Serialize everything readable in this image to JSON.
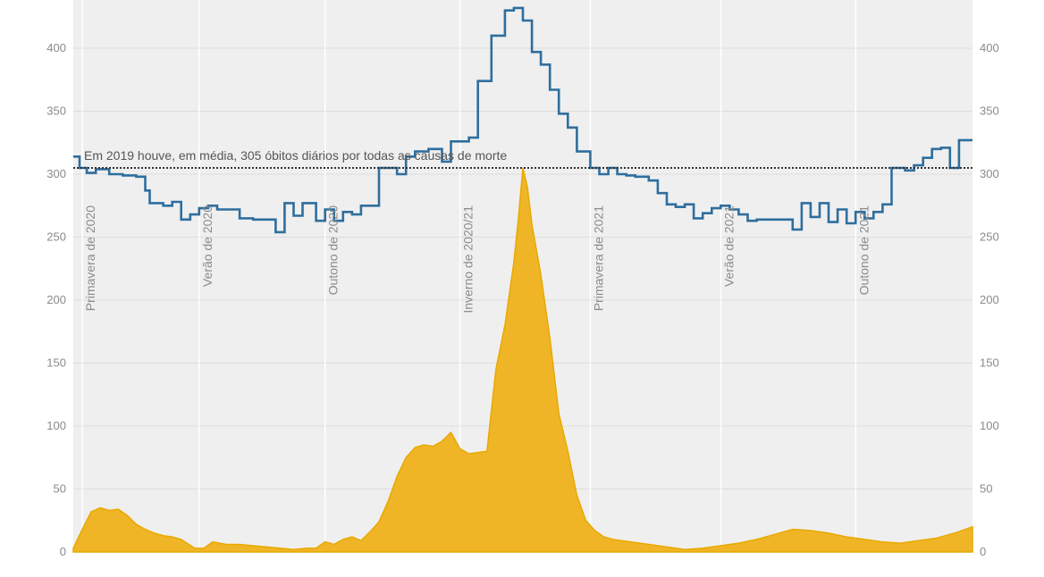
{
  "chart_data": {
    "type": "area",
    "ylim": [
      0,
      430
    ],
    "y_ticks": [
      0,
      50,
      100,
      150,
      200,
      250,
      300,
      350,
      400
    ],
    "grid": true,
    "colors": {
      "background": "#efefef",
      "all_cause_line": "#2e6e9e",
      "covid_area": "#f0b527",
      "covid_area_edge": "#e8a900",
      "reference_line": "#333333"
    },
    "reference": {
      "value": 305,
      "label": "Em 2019 houve, em média, 305 óbitos diários por todas as causas de morte"
    },
    "seasons": [
      {
        "label": "Primavera de 2020",
        "x": 0.02
      },
      {
        "label": "Verão de 2020",
        "x": 0.15
      },
      {
        "label": "Outono de 2020",
        "x": 0.29
      },
      {
        "label": "Inverno de 2020/21",
        "x": 0.44
      },
      {
        "label": "Primavera de 2021",
        "x": 0.585
      },
      {
        "label": "Verão de 2021",
        "x": 0.73
      },
      {
        "label": "Outono de 2021",
        "x": 0.88
      }
    ],
    "series": [
      {
        "kind": "step-line",
        "points": [
          [
            0.0,
            314
          ],
          [
            0.007,
            305
          ],
          [
            0.015,
            301
          ],
          [
            0.025,
            304
          ],
          [
            0.04,
            300
          ],
          [
            0.055,
            299
          ],
          [
            0.07,
            298
          ],
          [
            0.08,
            287
          ],
          [
            0.085,
            277
          ],
          [
            0.1,
            275
          ],
          [
            0.11,
            278
          ],
          [
            0.12,
            264
          ],
          [
            0.13,
            268
          ],
          [
            0.14,
            273
          ],
          [
            0.15,
            275
          ],
          [
            0.16,
            272
          ],
          [
            0.17,
            272
          ],
          [
            0.185,
            265
          ],
          [
            0.2,
            264
          ],
          [
            0.215,
            264
          ],
          [
            0.225,
            254
          ],
          [
            0.235,
            277
          ],
          [
            0.245,
            267
          ],
          [
            0.255,
            277
          ],
          [
            0.27,
            263
          ],
          [
            0.28,
            272
          ],
          [
            0.29,
            263
          ],
          [
            0.3,
            270
          ],
          [
            0.31,
            268
          ],
          [
            0.32,
            275
          ],
          [
            0.34,
            305
          ],
          [
            0.36,
            300
          ],
          [
            0.37,
            314
          ],
          [
            0.38,
            318
          ],
          [
            0.395,
            320
          ],
          [
            0.41,
            310
          ],
          [
            0.42,
            326
          ],
          [
            0.44,
            329
          ],
          [
            0.45,
            374
          ],
          [
            0.465,
            410
          ],
          [
            0.48,
            430
          ],
          [
            0.49,
            432
          ],
          [
            0.5,
            422
          ],
          [
            0.51,
            397
          ],
          [
            0.52,
            387
          ],
          [
            0.53,
            367
          ],
          [
            0.54,
            348
          ],
          [
            0.55,
            337
          ],
          [
            0.56,
            318
          ],
          [
            0.575,
            305
          ],
          [
            0.585,
            300
          ],
          [
            0.595,
            305
          ],
          [
            0.605,
            300
          ],
          [
            0.615,
            299
          ],
          [
            0.625,
            298
          ],
          [
            0.64,
            295
          ],
          [
            0.65,
            285
          ],
          [
            0.66,
            276
          ],
          [
            0.67,
            274
          ],
          [
            0.68,
            276
          ],
          [
            0.69,
            265
          ],
          [
            0.7,
            269
          ],
          [
            0.71,
            273
          ],
          [
            0.72,
            275
          ],
          [
            0.73,
            272
          ],
          [
            0.74,
            268
          ],
          [
            0.75,
            263
          ],
          [
            0.76,
            264
          ],
          [
            0.77,
            264
          ],
          [
            0.78,
            264
          ],
          [
            0.8,
            256
          ],
          [
            0.81,
            277
          ],
          [
            0.82,
            266
          ],
          [
            0.83,
            277
          ],
          [
            0.84,
            262
          ],
          [
            0.85,
            272
          ],
          [
            0.86,
            261
          ],
          [
            0.87,
            270
          ],
          [
            0.88,
            265
          ],
          [
            0.89,
            270
          ],
          [
            0.9,
            276
          ],
          [
            0.91,
            305
          ],
          [
            0.925,
            303
          ],
          [
            0.935,
            307
          ],
          [
            0.945,
            313
          ],
          [
            0.955,
            320
          ],
          [
            0.965,
            321
          ],
          [
            0.975,
            305
          ],
          [
            0.985,
            327
          ],
          [
            1.0,
            327
          ]
        ]
      },
      {
        "kind": "area",
        "points": [
          [
            0.0,
            3
          ],
          [
            0.01,
            18
          ],
          [
            0.02,
            32
          ],
          [
            0.03,
            35
          ],
          [
            0.04,
            33
          ],
          [
            0.05,
            34
          ],
          [
            0.06,
            29
          ],
          [
            0.07,
            22
          ],
          [
            0.08,
            18
          ],
          [
            0.09,
            15
          ],
          [
            0.1,
            13
          ],
          [
            0.11,
            12
          ],
          [
            0.12,
            10
          ],
          [
            0.135,
            3
          ],
          [
            0.145,
            3
          ],
          [
            0.155,
            8
          ],
          [
            0.17,
            6
          ],
          [
            0.185,
            6
          ],
          [
            0.2,
            5
          ],
          [
            0.215,
            4
          ],
          [
            0.23,
            3
          ],
          [
            0.245,
            2
          ],
          [
            0.26,
            3
          ],
          [
            0.27,
            3
          ],
          [
            0.28,
            8
          ],
          [
            0.29,
            6
          ],
          [
            0.3,
            10
          ],
          [
            0.31,
            12
          ],
          [
            0.32,
            9
          ],
          [
            0.33,
            16
          ],
          [
            0.34,
            24
          ],
          [
            0.35,
            40
          ],
          [
            0.36,
            60
          ],
          [
            0.37,
            75
          ],
          [
            0.38,
            83
          ],
          [
            0.39,
            85
          ],
          [
            0.4,
            84
          ],
          [
            0.41,
            88
          ],
          [
            0.42,
            95
          ],
          [
            0.43,
            82
          ],
          [
            0.44,
            78
          ],
          [
            0.45,
            79
          ],
          [
            0.46,
            80
          ],
          [
            0.47,
            145
          ],
          [
            0.48,
            180
          ],
          [
            0.49,
            230
          ],
          [
            0.495,
            265
          ],
          [
            0.5,
            305
          ],
          [
            0.505,
            290
          ],
          [
            0.51,
            260
          ],
          [
            0.52,
            220
          ],
          [
            0.53,
            170
          ],
          [
            0.54,
            110
          ],
          [
            0.55,
            80
          ],
          [
            0.56,
            45
          ],
          [
            0.57,
            25
          ],
          [
            0.58,
            17
          ],
          [
            0.59,
            12
          ],
          [
            0.6,
            10
          ],
          [
            0.62,
            8
          ],
          [
            0.64,
            6
          ],
          [
            0.66,
            4
          ],
          [
            0.68,
            2
          ],
          [
            0.7,
            3
          ],
          [
            0.72,
            5
          ],
          [
            0.74,
            7
          ],
          [
            0.76,
            10
          ],
          [
            0.78,
            14
          ],
          [
            0.8,
            18
          ],
          [
            0.82,
            17
          ],
          [
            0.84,
            15
          ],
          [
            0.86,
            12
          ],
          [
            0.88,
            10
          ],
          [
            0.9,
            8
          ],
          [
            0.92,
            7
          ],
          [
            0.94,
            9
          ],
          [
            0.96,
            11
          ],
          [
            0.98,
            15
          ],
          [
            1.0,
            20
          ]
        ]
      }
    ]
  }
}
